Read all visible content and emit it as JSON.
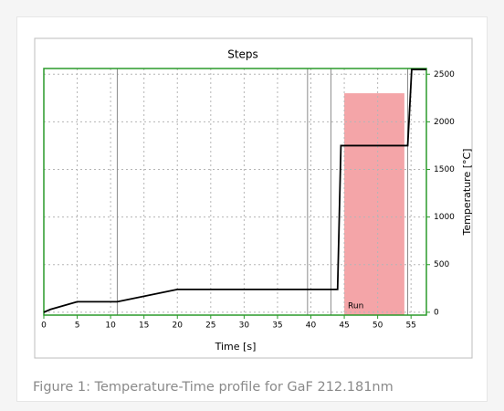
{
  "chart_data": {
    "type": "line",
    "title": "Steps",
    "x_label": "Time [s]",
    "y_label": "Temperature [°C]",
    "series": [
      {
        "name": "Temperature",
        "color": "#000000",
        "x": [
          0,
          1,
          5,
          11,
          20,
          44,
          44.5,
          54.5,
          55.1,
          57.3
        ],
        "values": [
          0,
          30,
          110,
          110,
          240,
          240,
          1750,
          1750,
          2550,
          2550
        ]
      }
    ],
    "regions": [
      {
        "label": "Run",
        "x": [
          45,
          54
        ],
        "top": 2300,
        "color": "#f4a5a8"
      }
    ],
    "step_markers": [
      11,
      39.5,
      43,
      54.5
    ],
    "xlim": [
      0,
      57.3
    ],
    "xticks": [
      0,
      5,
      10,
      15,
      20,
      25,
      30,
      35,
      40,
      45,
      50,
      55
    ],
    "ylim": [
      -30,
      2560
    ],
    "yticks": [
      0,
      500,
      1000,
      1500,
      2000,
      2500
    ],
    "y_axis_side": "right",
    "grid": true
  },
  "caption": "Figure 1: Temperature-Time profile for GaF 212.181nm"
}
